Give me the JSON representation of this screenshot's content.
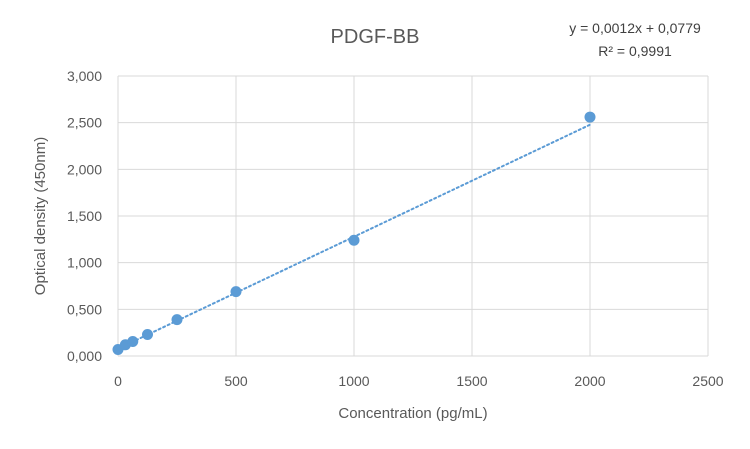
{
  "chart_data": {
    "type": "scatter",
    "title": "PDGF-BB",
    "xlabel": "Concentration (pg/mL)",
    "ylabel": "Optical density (450nm)",
    "xlim": [
      0,
      2500
    ],
    "ylim": [
      0,
      3.0
    ],
    "x_ticks": [
      "0",
      "500",
      "1000",
      "1500",
      "2000",
      "2500"
    ],
    "y_ticks": [
      "0,000",
      "0,500",
      "1,000",
      "1,500",
      "2,000",
      "2,500",
      "3,000"
    ],
    "grid": true,
    "legend": "none",
    "series": [
      {
        "x": [
          0,
          31.25,
          62.5,
          125,
          250,
          500,
          1000,
          2000
        ],
        "y": [
          0.07,
          0.12,
          0.155,
          0.23,
          0.39,
          0.69,
          1.24,
          2.56
        ],
        "color": "#5b9bd5"
      }
    ],
    "trendline": {
      "type": "linear",
      "slope": 0.0012,
      "intercept": 0.0779,
      "style": "dotted",
      "color": "#5b9bd5",
      "equation": "y = 0,0012x + 0,0779",
      "r_squared": "R² = 0,9991"
    }
  }
}
